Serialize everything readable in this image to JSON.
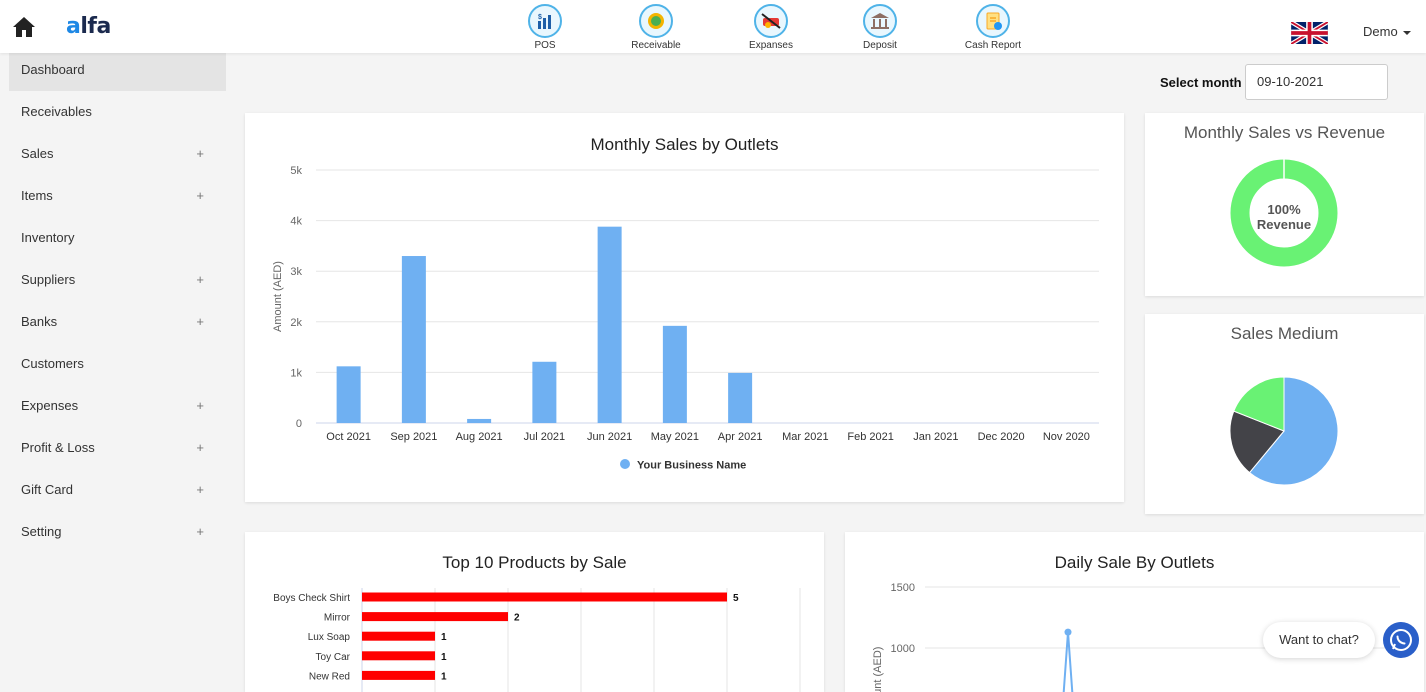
{
  "header": {
    "logo": "alfa",
    "shortcuts": [
      {
        "label": "POS",
        "icon": "pos-icon"
      },
      {
        "label": "Receivable",
        "icon": "receivable-icon"
      },
      {
        "label": "Expanses",
        "icon": "expenses-icon"
      },
      {
        "label": "Deposit",
        "icon": "deposit-icon"
      },
      {
        "label": "Cash Report",
        "icon": "cash-report-icon"
      }
    ],
    "user": "Demo",
    "language_flag": "uk-flag-icon"
  },
  "sidebar": {
    "items": [
      {
        "label": "Dashboard",
        "expandable": false,
        "active": true
      },
      {
        "label": "Receivables",
        "expandable": false
      },
      {
        "label": "Sales",
        "expandable": true
      },
      {
        "label": "Items",
        "expandable": true
      },
      {
        "label": "Inventory",
        "expandable": false
      },
      {
        "label": "Suppliers",
        "expandable": true
      },
      {
        "label": "Banks",
        "expandable": true
      },
      {
        "label": "Customers",
        "expandable": false
      },
      {
        "label": "Expenses",
        "expandable": true
      },
      {
        "label": "Profit & Loss",
        "expandable": true
      },
      {
        "label": "Gift Card",
        "expandable": true
      },
      {
        "label": "Setting",
        "expandable": true
      }
    ],
    "expand_symbol": "+"
  },
  "filter": {
    "label": "Select month",
    "value": "09-10-2021"
  },
  "chat": {
    "label": "Want to chat?"
  },
  "colors": {
    "bar_blue": "#6fb0f2",
    "donut_green": "#69f274",
    "pie_dark": "#434348",
    "bar_red": "#ff0000"
  },
  "chart_data": [
    {
      "type": "bar",
      "title": "Monthly Sales by Outlets",
      "ylabel": "Amount (AED)",
      "xlabel": "",
      "ylim": [
        0,
        5000
      ],
      "ytick_labels": [
        "0",
        "1k",
        "2k",
        "3k",
        "4k",
        "5k"
      ],
      "categories": [
        "Oct 2021",
        "Sep 2021",
        "Aug 2021",
        "Jul 2021",
        "Jun 2021",
        "May 2021",
        "Apr 2021",
        "Mar 2021",
        "Feb 2021",
        "Jan 2021",
        "Dec 2020",
        "Nov 2020"
      ],
      "series": [
        {
          "name": "Your Business Name",
          "values": [
            1120,
            3300,
            80,
            1210,
            3880,
            1920,
            990,
            0,
            0,
            0,
            0,
            0
          ]
        }
      ],
      "grid": true,
      "legend": "bottom-center"
    },
    {
      "type": "pie",
      "title": "Monthly Sales vs Revenue",
      "donut": true,
      "center_label": [
        "100%",
        "Revenue"
      ],
      "slices": [
        {
          "label": "Revenue",
          "value": 100
        }
      ]
    },
    {
      "type": "pie",
      "title": "Sales Medium",
      "slices": [
        {
          "value": 61
        },
        {
          "value": 20
        },
        {
          "value": 19
        }
      ]
    },
    {
      "type": "bar",
      "orientation": "horizontal",
      "title": "Top 10 Products by Sale",
      "categories": [
        "Boys Check Shirt",
        "Mirror",
        "Lux Soap",
        "Toy Car",
        "New Red"
      ],
      "values": [
        5,
        2,
        1,
        1,
        1
      ],
      "xlim": [
        0,
        6
      ],
      "grid": true,
      "data_labels": true
    },
    {
      "type": "line",
      "title": "Daily Sale By Outlets",
      "ylabel": "Amount (AED)",
      "ytick_labels": [
        "1000",
        "1500"
      ],
      "visible_ytick_values": [
        1000,
        1500
      ],
      "peak_point": 1130
    }
  ]
}
